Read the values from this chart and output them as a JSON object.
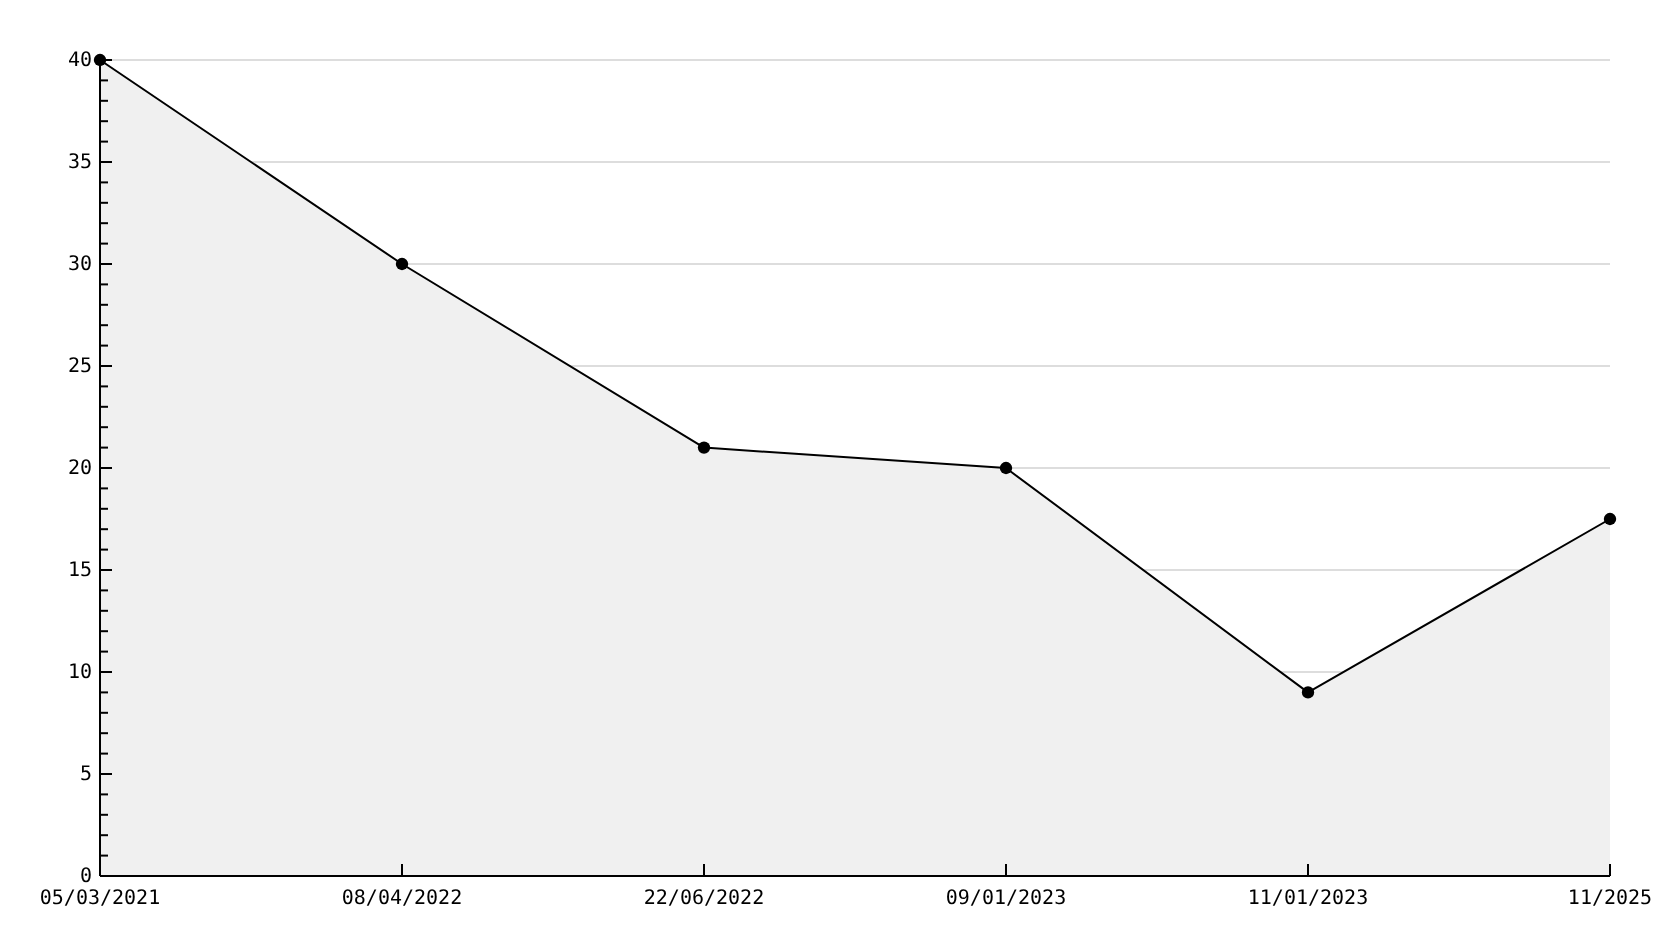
{
  "chart_data": {
    "type": "area",
    "categories": [
      "05/03/2021",
      "08/04/2022",
      "22/06/2022",
      "09/01/2023",
      "11/01/2023",
      "11/2025"
    ],
    "series": [
      {
        "color": "#000000",
        "values": [
          40,
          30,
          21,
          20,
          9,
          17.5
        ]
      }
    ],
    "ylim": [
      0,
      40
    ],
    "yticks": [
      0,
      {
        "value": 1,
        "label": null
      },
      {
        "value": 2,
        "label": null
      },
      {
        "value": 3,
        "label": null
      },
      {
        "value": 4,
        "label": null
      },
      5,
      {
        "value": 6,
        "label": null
      },
      {
        "value": 7,
        "label": null
      },
      {
        "value": 8,
        "label": null
      },
      {
        "value": 9,
        "label": null
      },
      10,
      {
        "value": 11,
        "label": null
      },
      {
        "value": 12,
        "label": null
      },
      {
        "value": 13,
        "label": null
      },
      {
        "value": 14,
        "label": null
      },
      15,
      {
        "value": 16,
        "label": null
      },
      {
        "value": 17,
        "label": null
      },
      {
        "value": 18,
        "label": null
      },
      {
        "value": 19,
        "label": null
      },
      20,
      {
        "value": 21,
        "label": null
      },
      {
        "value": 22,
        "label": null
      },
      {
        "value": 23,
        "label": null
      },
      {
        "value": 24,
        "label": null
      },
      25,
      {
        "value": 26,
        "label": null
      },
      {
        "value": 27,
        "label": null
      },
      {
        "value": 28,
        "label": null
      },
      {
        "value": 29,
        "label": null
      },
      30,
      {
        "value": 31,
        "label": null
      },
      {
        "value": 32,
        "label": null
      },
      {
        "value": 33,
        "label": null
      },
      {
        "value": 34,
        "label": null
      },
      35,
      {
        "value": 36,
        "label": null
      },
      {
        "value": 37,
        "label": null
      },
      {
        "value": 38,
        "label": null
      },
      {
        "value": 39,
        "label": null
      },
      40
    ],
    "grid": "y",
    "marker": "circle",
    "line_style": "solid"
  }
}
